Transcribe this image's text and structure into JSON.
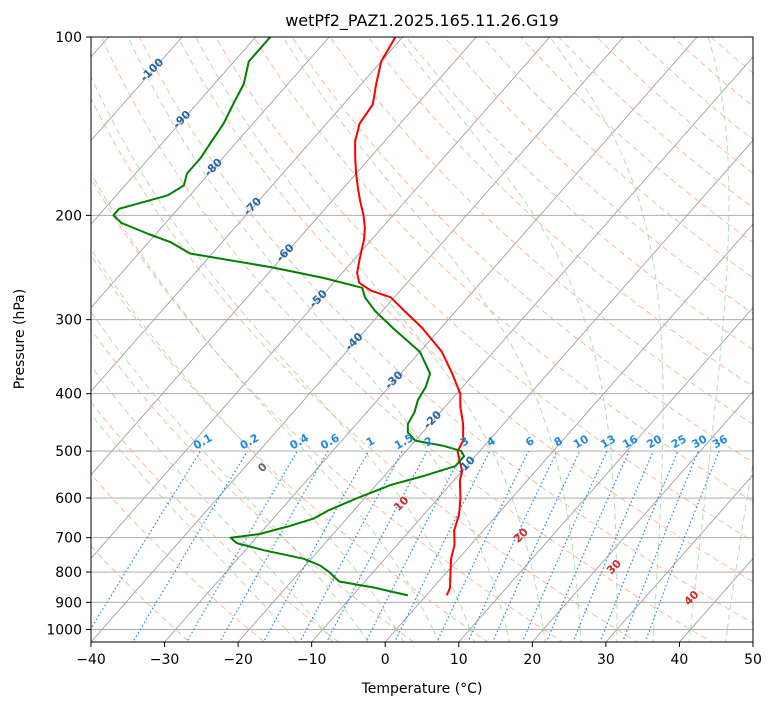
{
  "chart_data": {
    "type": "line",
    "subtype": "skew-T log-P diagram",
    "title": "wetPf2_PAZ1.2025.165.11.26.G19",
    "xlabel": "Temperature (°C)",
    "ylabel": "Pressure (hPa)",
    "xlim": [
      -40,
      50
    ],
    "ylim": [
      1050,
      100
    ],
    "y_scale": "log",
    "x_ticks": [
      "−40",
      "−30",
      "−20",
      "−10",
      "0",
      "10",
      "20",
      "30",
      "40",
      "50"
    ],
    "y_ticks": [
      "100",
      "200",
      "300",
      "400",
      "500",
      "600",
      "700",
      "800",
      "900",
      "1000"
    ],
    "grid": true,
    "series": [
      {
        "color": "#ff0000",
        "x_pressure_hpa": [
          876,
          850,
          800,
          760,
          720,
          680,
          640,
          600,
          560,
          540,
          520,
          500,
          480,
          450,
          420,
          400,
          370,
          340,
          310,
          290,
          275,
          268,
          260,
          250,
          240,
          230,
          220,
          210,
          200,
          190,
          180,
          170,
          160,
          150,
          140,
          130,
          120,
          110,
          100
        ],
        "y_temperature_c": [
          2.8,
          2.3,
          0.5,
          -1.0,
          -2.2,
          -4.0,
          -5.2,
          -7.0,
          -9.2,
          -10.0,
          -11.5,
          -13.0,
          -13.5,
          -15.5,
          -18.0,
          -19.5,
          -23.0,
          -27.0,
          -32.5,
          -37.0,
          -40.5,
          -44.0,
          -46.5,
          -48.0,
          -49.0,
          -50.0,
          -51.0,
          -52.3,
          -54.0,
          -56.0,
          -58.0,
          -60.0,
          -62.0,
          -64.0,
          -65.5,
          -66.0,
          -68.0,
          -70.0,
          -71.0
        ]
      },
      {
        "color": "#008000",
        "x_pressure_hpa": [
          876,
          850,
          830,
          800,
          780,
          760,
          735,
          715,
          700,
          690,
          670,
          650,
          630,
          600,
          570,
          550,
          530,
          510,
          500,
          490,
          480,
          465,
          450,
          430,
          410,
          390,
          370,
          340,
          310,
          290,
          275,
          265,
          255,
          245,
          232,
          222,
          215,
          206,
          200,
          195,
          185,
          178,
          170,
          160,
          150,
          140,
          130,
          120,
          110,
          100
        ],
        "y_temperature_c": [
          -2.5,
          -8.0,
          -13.5,
          -16.0,
          -18.0,
          -21.0,
          -27.5,
          -32.0,
          -33.5,
          -30.0,
          -27.0,
          -24.5,
          -23.5,
          -21.0,
          -18.0,
          -14.5,
          -11.5,
          -11.5,
          -12.5,
          -15.5,
          -20.0,
          -22.0,
          -23.0,
          -23.5,
          -24.5,
          -25.0,
          -26.0,
          -30.0,
          -36.5,
          -41.0,
          -44.0,
          -45.5,
          -52.0,
          -60.0,
          -73.0,
          -77.0,
          -81.0,
          -86.0,
          -88.0,
          -88.0,
          -83.0,
          -82.0,
          -83.0,
          -83.0,
          -83.5,
          -84.0,
          -85.0,
          -86.0,
          -88.0,
          -88.0
        ]
      }
    ],
    "mixing_ratio_labels": [
      "0.1",
      "0.2",
      "0.4",
      "0.6",
      "1",
      "1.5",
      "2",
      "3",
      "4",
      "6",
      "8",
      "10",
      "13",
      "16",
      "20",
      "25",
      "30",
      "36"
    ],
    "mixing_ratio_values": [
      0.1,
      0.2,
      0.4,
      0.6,
      1,
      1.5,
      2,
      3,
      4,
      6,
      8,
      10,
      13,
      16,
      20,
      25,
      30,
      36
    ],
    "dry_adiabat_labels": [
      "-100",
      "-90",
      "-80",
      "-70",
      "-60",
      "-50",
      "-40",
      "-30",
      "-20",
      "-10"
    ],
    "dry_adiabat_label_pressure_hpa": [
      113,
      137,
      165,
      192,
      230,
      275,
      325,
      377,
      440,
      525
    ],
    "moist_adiabat_labels": [
      "0",
      "10",
      "20",
      "30",
      "40"
    ],
    "moist_adiabat_label_pressure_hpa": [
      530,
      610,
      690,
      780,
      880
    ],
    "colors": {
      "temperature": "#ff0000",
      "dewpoint": "#008000",
      "isotherm": "#a0a0a0",
      "isobar": "#a0a0a0",
      "dry_adiabat": "#f4a582",
      "moist_adiabat": "#9bd19b",
      "mixing_ratio": "#1e88e5",
      "dry_label": "#2166ac",
      "moist_label": "#d62728",
      "zero_label": "#666666"
    }
  }
}
